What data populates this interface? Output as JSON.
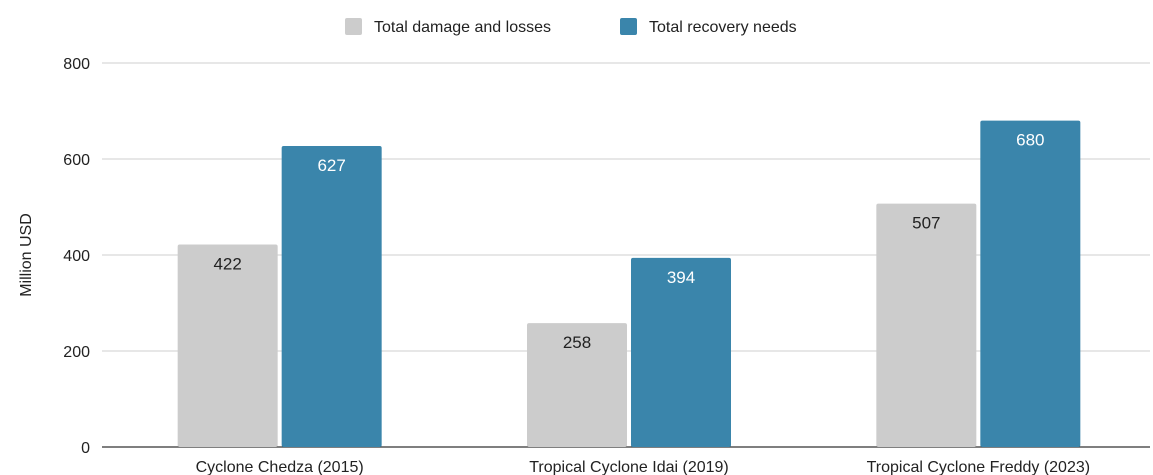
{
  "chart_data": {
    "type": "bar",
    "title": "",
    "xlabel": "",
    "ylabel": "Million USD",
    "ylim": [
      0,
      800
    ],
    "yticks": [
      0,
      200,
      400,
      600,
      800
    ],
    "grid": true,
    "legend_position": "top",
    "categories": [
      "Cyclone Chedza (2015)",
      "Tropical Cyclone Idai (2019)",
      "Tropical Cyclone Freddy (2023)"
    ],
    "series": [
      {
        "name": "Total damage and losses",
        "color": "#cccccc",
        "label_color": "#222222",
        "values": [
          422,
          258,
          507
        ]
      },
      {
        "name": "Total recovery needs",
        "color": "#3a85ab",
        "label_color": "#ffffff",
        "values": [
          627,
          394,
          680
        ]
      }
    ]
  }
}
